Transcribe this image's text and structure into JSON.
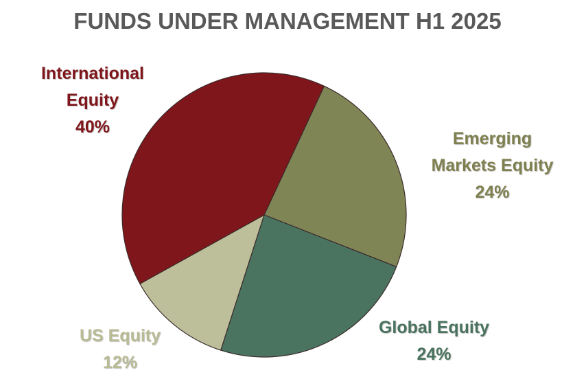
{
  "chart_data": {
    "type": "pie",
    "title": "FUNDS UNDER MANAGEMENT H1 2025",
    "categories": [
      "Emerging Markets Equity",
      "Global Equity",
      "US Equity",
      "International Equity"
    ],
    "values": [
      24,
      24,
      12,
      40
    ],
    "value_labels": [
      "24%",
      "24%",
      "12%",
      "40%"
    ],
    "colors": [
      "#808556",
      "#4a7360",
      "#bcbf99",
      "#7f161b"
    ],
    "label_colors": [
      "#7f8050",
      "#4a735f",
      "#b9bb95",
      "#7f161b"
    ]
  }
}
